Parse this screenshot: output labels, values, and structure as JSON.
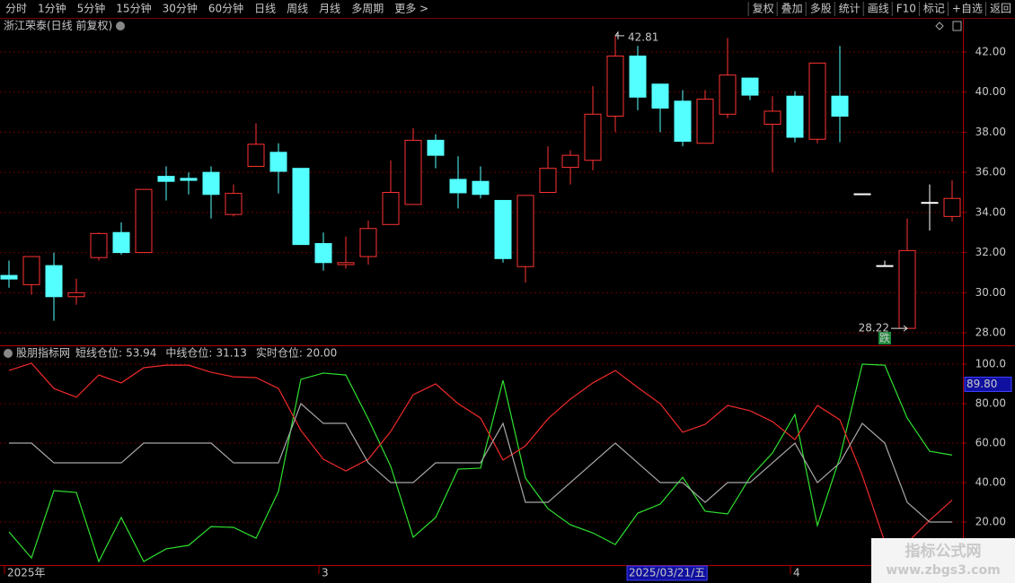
{
  "toolbar": {
    "left": [
      "分时",
      "1分钟",
      "5分钟",
      "15分钟",
      "30分钟",
      "60分钟",
      "日线",
      "周线",
      "月线",
      "多周期",
      "更多 >"
    ],
    "active": 6,
    "right": [
      "复权",
      "叠加",
      "多股",
      "统计",
      "画线",
      "F10",
      "标记",
      "+自选",
      "返回"
    ]
  },
  "chart_data": [
    {
      "type": "candlestick",
      "title": "浙江荣泰(日线 前复权)",
      "open": [
        30.86,
        30.4,
        31.35,
        29.8,
        31.75,
        33.0,
        32.0,
        35.8,
        35.7,
        36.0,
        33.9,
        36.3,
        37.0,
        36.2,
        32.45,
        31.4,
        31.8,
        33.4,
        34.4,
        37.6,
        35.65,
        35.55,
        34.6,
        31.3,
        35.0,
        36.25,
        36.6,
        38.8,
        41.8,
        40.4,
        39.55,
        37.45,
        38.9,
        40.7,
        38.4,
        39.8,
        37.65,
        39.8,
        34.93,
        31.35,
        28.22,
        34.5,
        33.8
      ],
      "high": [
        31.6,
        31.8,
        32.0,
        30.7,
        33.0,
        33.5,
        35.15,
        36.3,
        36.0,
        36.3,
        35.4,
        38.45,
        37.45,
        36.2,
        33.0,
        32.8,
        33.6,
        36.6,
        38.2,
        37.9,
        36.8,
        36.3,
        34.6,
        34.85,
        37.3,
        37.1,
        40.3,
        42.81,
        42.3,
        40.4,
        40.1,
        40.1,
        42.7,
        40.7,
        39.8,
        40.05,
        41.45,
        42.3,
        34.93,
        31.6,
        33.7,
        35.4,
        35.6
      ],
      "low": [
        30.25,
        29.9,
        28.6,
        29.4,
        31.6,
        31.9,
        32.0,
        34.6,
        34.9,
        33.7,
        33.8,
        36.3,
        34.95,
        32.4,
        31.1,
        31.2,
        31.4,
        33.4,
        34.4,
        36.2,
        34.2,
        34.7,
        31.5,
        30.5,
        35.0,
        35.4,
        36.1,
        38.0,
        39.1,
        38.0,
        37.3,
        37.45,
        38.7,
        39.6,
        36.0,
        37.5,
        37.45,
        37.5,
        34.93,
        31.35,
        28.22,
        33.1,
        33.55
      ],
      "close": [
        30.68,
        31.8,
        29.8,
        30.0,
        32.95,
        32.0,
        35.15,
        35.55,
        35.6,
        34.9,
        34.95,
        37.4,
        36.05,
        32.4,
        31.5,
        31.5,
        33.2,
        35.0,
        37.6,
        36.85,
        34.98,
        34.9,
        31.7,
        34.85,
        36.2,
        36.85,
        38.9,
        41.8,
        39.75,
        39.2,
        37.55,
        39.65,
        40.85,
        39.85,
        39.05,
        37.75,
        41.45,
        38.8,
        34.93,
        31.35,
        32.1,
        34.5,
        34.7
      ],
      "up_color": "#ff3232",
      "down_color": "#54ffff",
      "flat_color": "#ffffff",
      "ylim": [
        27.42,
        43.61
      ],
      "yticks": [
        {
          "value": 28,
          "label": "28.00"
        },
        {
          "value": 30,
          "label": "30.00"
        },
        {
          "value": 32,
          "label": "32.00"
        },
        {
          "value": 34,
          "label": "34.00"
        },
        {
          "value": 36,
          "label": "36.00"
        },
        {
          "value": 38,
          "label": "38.00"
        },
        {
          "value": 40,
          "label": "40.00"
        },
        {
          "value": 42,
          "label": "42.00"
        }
      ],
      "grid": true,
      "annotations": [
        {
          "value": 42.81,
          "index": 27
        },
        {
          "value": 28.22,
          "index": 40
        }
      ],
      "signal": {
        "label": "跌",
        "index": 39
      }
    },
    {
      "type": "line",
      "title": "股朋指标网",
      "categories": [
        "2025年",
        null,
        null,
        null,
        null,
        null,
        null,
        null,
        null,
        null,
        null,
        null,
        null,
        null,
        "3",
        null,
        null,
        null,
        null,
        null,
        null,
        null,
        null,
        null,
        null,
        null,
        null,
        null,
        "2025/03/21/五",
        null,
        null,
        null,
        null,
        null,
        null,
        "4",
        null,
        null,
        null,
        null,
        null,
        null,
        null
      ],
      "highlight_category": 28,
      "series": [
        {
          "name": "短线仓位:",
          "color": "#2fe02f",
          "value_label": "53.94",
          "values": [
            15,
            1.8,
            35.9,
            35,
            0,
            22.3,
            0,
            6.4,
            8.2,
            17.7,
            17.3,
            11.8,
            35.5,
            92.3,
            95.5,
            94.5,
            72.3,
            48.2,
            12.3,
            22.3,
            46.8,
            47.3,
            91.8,
            42.3,
            26.8,
            18.6,
            14.5,
            8.6,
            24.5,
            29.1,
            42.7,
            25.5,
            24.1,
            42.7,
            55,
            74.5,
            18.2,
            52.7,
            100,
            99.5,
            72.7,
            55.9,
            53.94
          ]
        },
        {
          "name": "中线仓位:",
          "color": "#ee2a2a",
          "value_label": "31.13",
          "values": [
            96.8,
            100.5,
            87.7,
            83.2,
            94.5,
            90.5,
            98.2,
            99.5,
            99.5,
            95.9,
            93.6,
            93.2,
            87.7,
            66.4,
            51.8,
            45.9,
            51.8,
            65.9,
            84.5,
            90,
            80,
            72.7,
            51.4,
            58.6,
            72.3,
            82.3,
            90.5,
            96.8,
            88.2,
            80,
            65.5,
            69.5,
            79.1,
            76.4,
            70.9,
            61.8,
            79.1,
            71.8,
            43.6,
            10,
            9.5,
            20.9,
            31.13
          ]
        },
        {
          "name": "实时仓位:",
          "color": "#a8a8a8",
          "value_label": "20.00",
          "values": [
            60,
            60,
            50,
            50,
            50,
            50,
            60,
            60,
            60,
            60,
            50,
            50,
            50,
            80,
            70,
            70,
            50,
            40,
            40,
            50,
            50,
            50,
            70,
            30,
            30,
            40,
            50,
            60,
            50,
            40,
            40,
            30,
            40,
            40,
            50,
            60,
            40,
            50,
            70,
            60,
            30,
            20,
            20
          ]
        }
      ],
      "ylim": [
        -1.8,
        109.1
      ],
      "yticks": [
        {
          "value": 20,
          "label": "20.00"
        },
        {
          "value": 40,
          "label": "40.00"
        },
        {
          "value": 60,
          "label": "60.00"
        },
        {
          "value": 80,
          "label": "80.00"
        },
        {
          "value": 100,
          "label": "100.0"
        }
      ],
      "grid": true,
      "cursor": {
        "value": 89.8,
        "label": "89.80"
      }
    }
  ],
  "watermark": {
    "title": "指标公式网",
    "url": "www.zbgs3.com"
  }
}
